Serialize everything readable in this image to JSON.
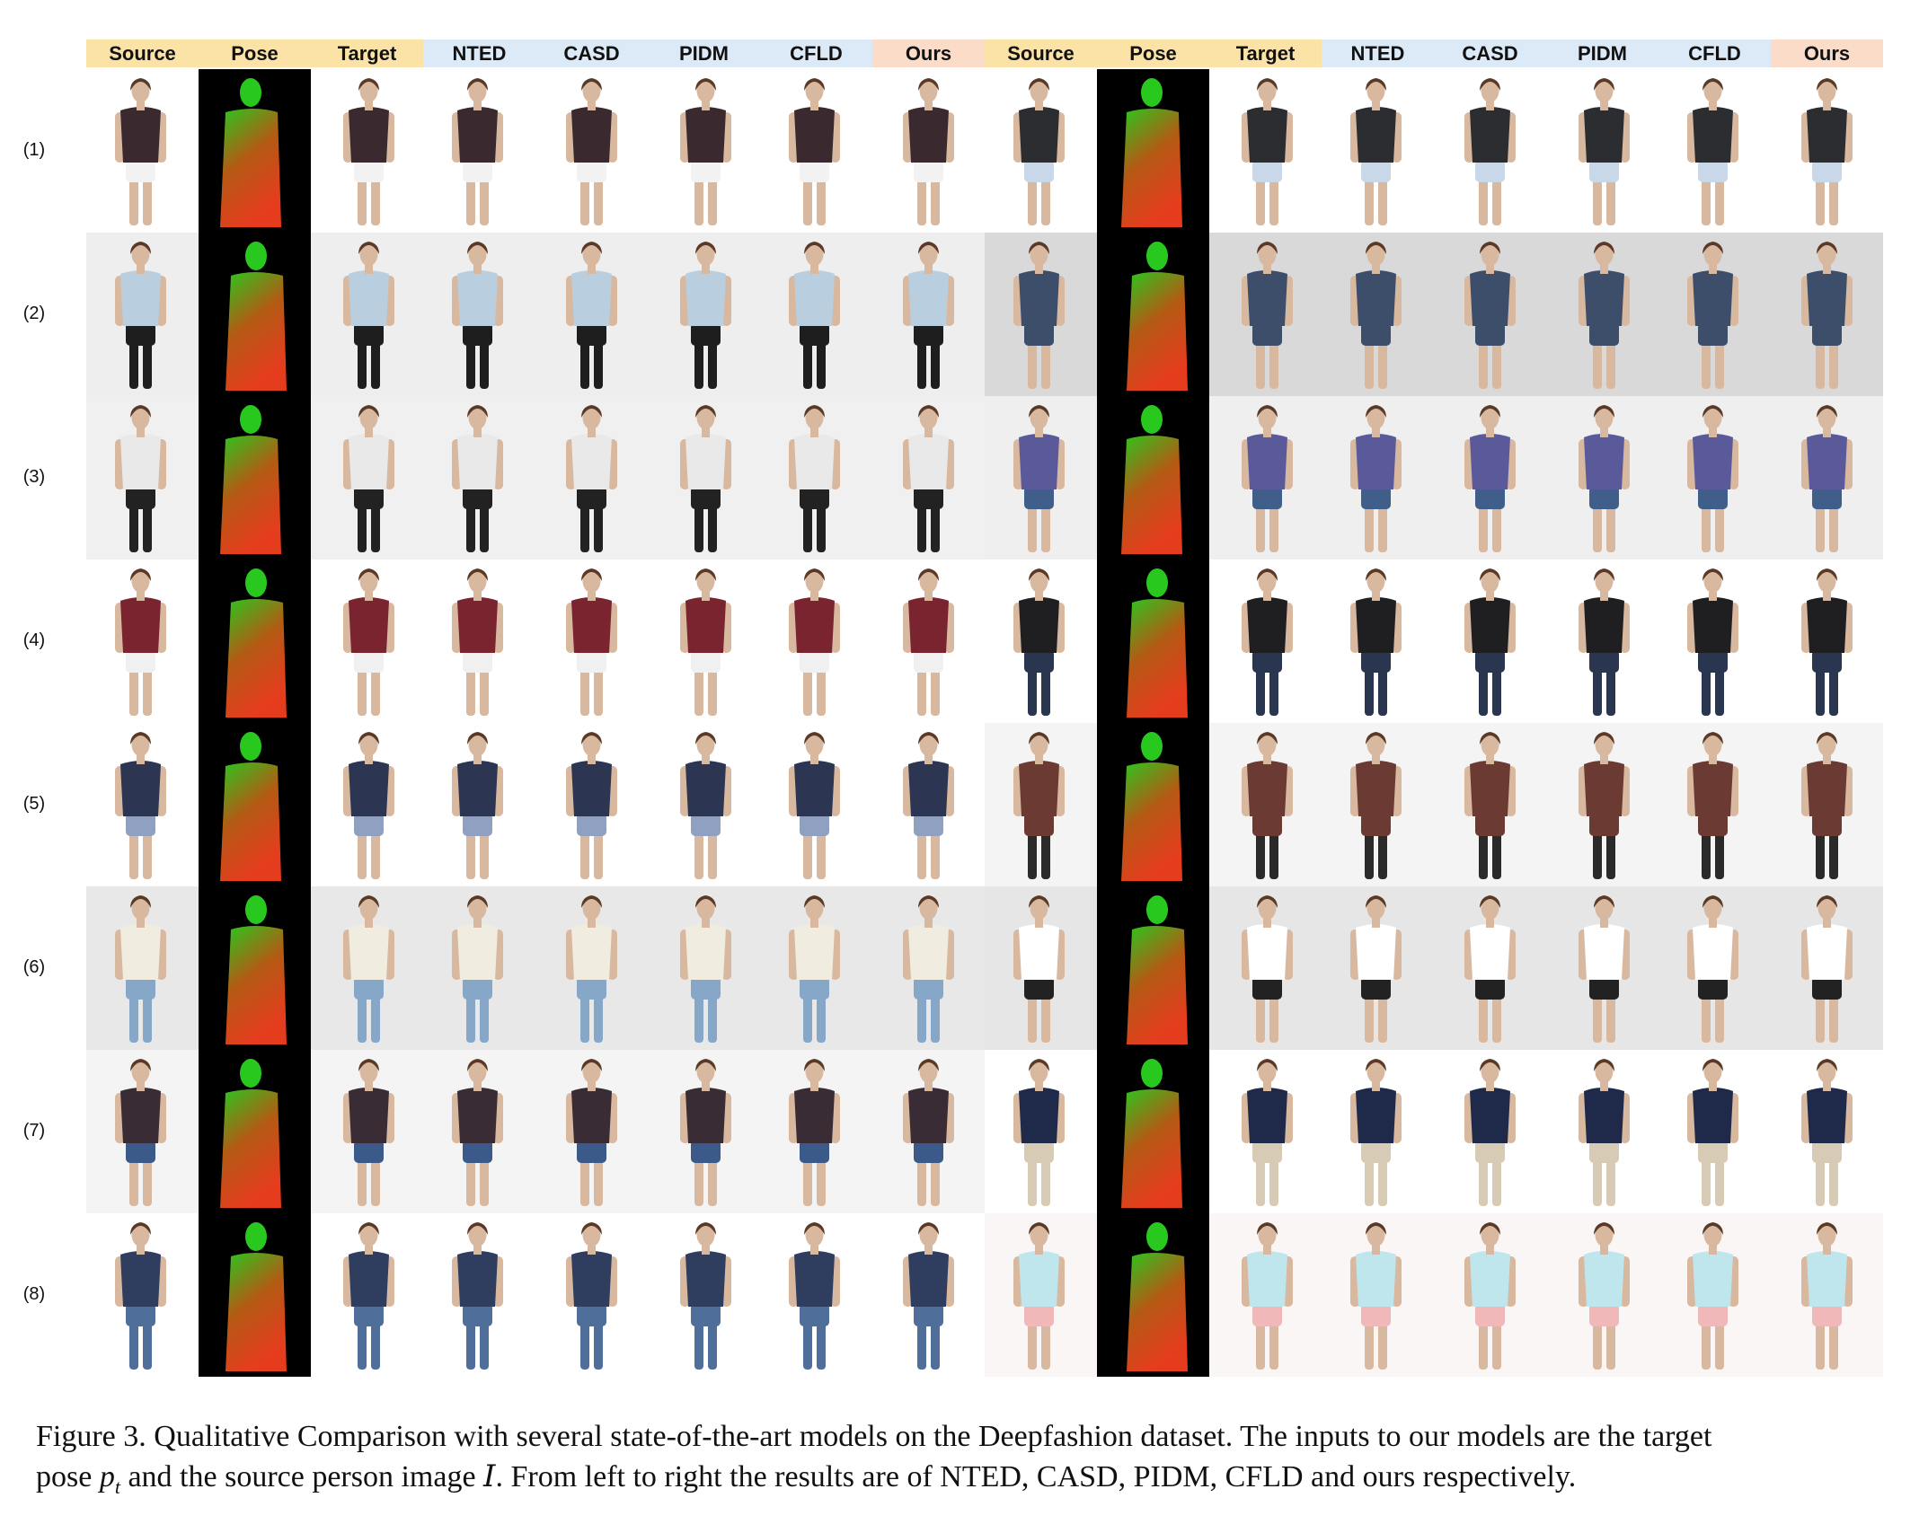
{
  "figure": {
    "column_headers": [
      {
        "label": "Source",
        "kind": "input"
      },
      {
        "label": "Pose",
        "kind": "input"
      },
      {
        "label": "Target",
        "kind": "input"
      },
      {
        "label": "NTED",
        "kind": "baseline"
      },
      {
        "label": "CASD",
        "kind": "baseline"
      },
      {
        "label": "PIDM",
        "kind": "baseline"
      },
      {
        "label": "CFLD",
        "kind": "baseline"
      },
      {
        "label": "Ours",
        "kind": "ours"
      },
      {
        "label": "Source",
        "kind": "input"
      },
      {
        "label": "Pose",
        "kind": "input"
      },
      {
        "label": "Target",
        "kind": "input"
      },
      {
        "label": "NTED",
        "kind": "baseline"
      },
      {
        "label": "CASD",
        "kind": "baseline"
      },
      {
        "label": "PIDM",
        "kind": "baseline"
      },
      {
        "label": "CFLD",
        "kind": "baseline"
      },
      {
        "label": "Ours",
        "kind": "ours"
      }
    ],
    "header_colors": {
      "input": "#fbe3a8",
      "baseline": "#dce9f6",
      "ours": "#fbdcc9"
    },
    "row_labels": [
      "(1)",
      "(2)",
      "(3)",
      "(4)",
      "(5)",
      "(6)",
      "(7)",
      "(8)"
    ],
    "rows": [
      {
        "left": {
          "top": "#3a2a30",
          "bottom": "#f2f2f2",
          "legs": "#d9b8a0",
          "bg": "#ffffff"
        },
        "right": {
          "top": "#2b2d30",
          "bottom": "#c9d8e8",
          "legs": "#d9b8a0",
          "bg": "#ffffff"
        }
      },
      {
        "left": {
          "top": "#b9cfe0",
          "bottom": "#1e1e1e",
          "legs": "#1e1e1e",
          "bg": "#eeeeee"
        },
        "right": {
          "top": "#3d4e6a",
          "bottom": "#3d4e6a",
          "legs": "#d9b8a0",
          "bg": "#d9d9d9"
        }
      },
      {
        "left": {
          "top": "#e9e9e9",
          "bottom": "#222222",
          "legs": "#222222",
          "bg": "#f0f0f0"
        },
        "right": {
          "top": "#5a5a9a",
          "bottom": "#3f5f8a",
          "legs": "#d9b8a0",
          "bg": "#efefef"
        }
      },
      {
        "left": {
          "top": "#7a2430",
          "bottom": "#f0f0f0",
          "legs": "#d9b8a0",
          "bg": "#ffffff"
        },
        "right": {
          "top": "#1f1f22",
          "bottom": "#2a3550",
          "legs": "#2a3550",
          "bg": "#ffffff"
        }
      },
      {
        "left": {
          "top": "#2c3552",
          "bottom": "#8fa0c0",
          "legs": "#d9b8a0",
          "bg": "#ffffff"
        },
        "right": {
          "top": "#6b3a32",
          "bottom": "#6b3a32",
          "legs": "#2a2a2a",
          "bg": "#f4f4f4"
        }
      },
      {
        "left": {
          "top": "#f1ece0",
          "bottom": "#86a7c8",
          "legs": "#86a7c8",
          "bg": "#e8e8e8"
        },
        "right": {
          "top": "#ffffff",
          "bottom": "#222222",
          "legs": "#d9b8a0",
          "bg": "#e6e6e6"
        }
      },
      {
        "left": {
          "top": "#3a2c34",
          "bottom": "#3b5a8a",
          "legs": "#d9b8a0",
          "bg": "#f4f4f4"
        },
        "right": {
          "top": "#1f2a4a",
          "bottom": "#d8cbb5",
          "legs": "#d8cbb5",
          "bg": "#ffffff"
        }
      },
      {
        "left": {
          "top": "#2f3d5e",
          "bottom": "#4f6f9a",
          "legs": "#4f6f9a",
          "bg": "#ffffff"
        },
        "right": {
          "top": "#bfe6ec",
          "bottom": "#f0b8b8",
          "legs": "#d9b8a0",
          "bg": "#fbf6f6"
        }
      }
    ],
    "pose_colors": {
      "background": "#000000",
      "head": "#28c81e",
      "mid": "#b45a14",
      "low": "#e63c1e"
    }
  },
  "caption": {
    "line1": "Figure 3. Qualitative Comparison with several state-of-the-art models on the Deepfashion dataset. The inputs to our models are the target",
    "line2_pre": "pose ",
    "line2_pose": "p",
    "line2_sub": "t",
    "line2_mid": " and the source person image ",
    "line2_img": "I",
    "line2_post": ". From left to right the results are of NTED, CASD, PIDM, CFLD and ours respectively."
  }
}
